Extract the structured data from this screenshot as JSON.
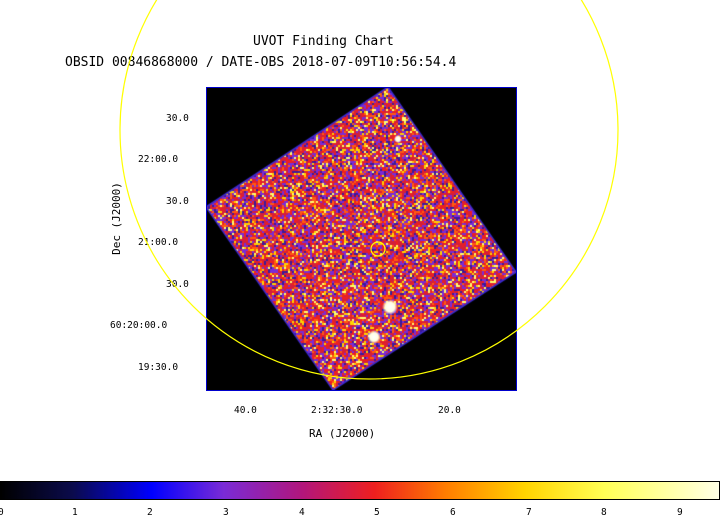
{
  "title": "UVOT Finding Chart",
  "subtitle": "OBSID 00846868000 / DATE-OBS 2018-07-09T10:56:54.4",
  "x_axis": {
    "label": "RA (J2000)",
    "ticks": [
      "40.0",
      "2:32:30.0",
      "20.0"
    ]
  },
  "y_axis": {
    "label": "Dec (J2000)",
    "ticks": [
      "30.0",
      "22:00.0",
      "30.0",
      "21:00.0",
      "30.0",
      "60:20:00.0",
      "19:30.0"
    ]
  },
  "colorbar": {
    "ticks": [
      "0",
      "1",
      "2",
      "3",
      "4",
      "5",
      "6",
      "7",
      "8",
      "9"
    ],
    "stops": [
      "#000000",
      "#0b0b4c",
      "#0000ff",
      "#7a2bd6",
      "#b2167b",
      "#ee1f1f",
      "#ff7d00",
      "#ffd400",
      "#ffff55",
      "#ffffe6"
    ]
  },
  "overlay_color": "#ffff00"
}
